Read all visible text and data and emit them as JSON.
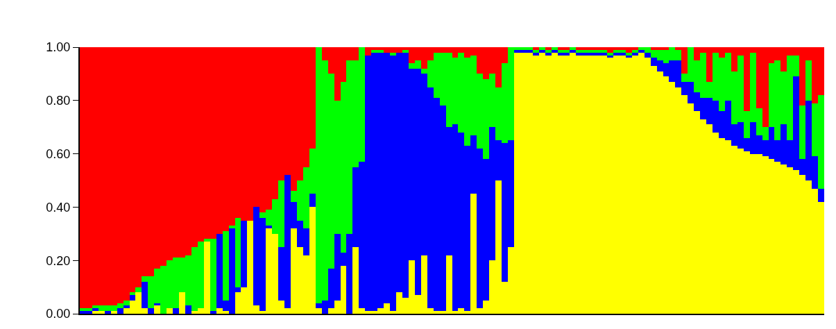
{
  "chart_data": {
    "type": "bar",
    "stacked": true,
    "categories": [
      null,
      null,
      null,
      null,
      null,
      null,
      null,
      null,
      null,
      null,
      null,
      null,
      null,
      null,
      null,
      null,
      null,
      null,
      null,
      null,
      null,
      null,
      null,
      null,
      null,
      null,
      null,
      null,
      null,
      null,
      null,
      null,
      null,
      null,
      null,
      null,
      null,
      null,
      null,
      null,
      null,
      null,
      null,
      null,
      null,
      null,
      null,
      null,
      null,
      null,
      null,
      null,
      null,
      null,
      null,
      null,
      null,
      null,
      null,
      null,
      null,
      null,
      null,
      null,
      null,
      null,
      null,
      null,
      null,
      null,
      null,
      null,
      null,
      null,
      null,
      null,
      null,
      null,
      null,
      null,
      null,
      null,
      null,
      null,
      null,
      null,
      null,
      null,
      null,
      null,
      null,
      null,
      null,
      null,
      null,
      null,
      null,
      null,
      null,
      null,
      null,
      null,
      null,
      null,
      null,
      null,
      null,
      null,
      null,
      null,
      null,
      null,
      null,
      null,
      null,
      null,
      null,
      null,
      null,
      null
    ],
    "series": [
      {
        "color": "#ffff00",
        "values": [
          0.0,
          0.0,
          0.01,
          0.01,
          0.0,
          0.01,
          0.0,
          0.02,
          0.05,
          0.08,
          0.02,
          0.0,
          0.03,
          0.0,
          0.02,
          0.0,
          0.08,
          0.0,
          0.01,
          0.02,
          0.27,
          0.0,
          0.02,
          0.01,
          0.0,
          0.08,
          0.1,
          0.35,
          0.03,
          0.01,
          0.32,
          0.3,
          0.05,
          0.02,
          0.32,
          0.25,
          0.22,
          0.4,
          0.02,
          0.0,
          0.02,
          0.05,
          0.18,
          0.0,
          0.25,
          0.02,
          0.01,
          0.01,
          0.02,
          0.04,
          0.01,
          0.08,
          0.06,
          0.2,
          0.07,
          0.22,
          0.02,
          0.01,
          0.01,
          0.22,
          0.01,
          0.02,
          0.01,
          0.45,
          0.02,
          0.05,
          0.2,
          0.5,
          0.12,
          0.25,
          0.98,
          0.98,
          0.98,
          0.97,
          0.98,
          0.97,
          0.98,
          0.97,
          0.97,
          0.98,
          0.97,
          0.97,
          0.97,
          0.97,
          0.97,
          0.96,
          0.97,
          0.97,
          0.96,
          0.97,
          0.98,
          0.96,
          0.93,
          0.91,
          0.89,
          0.87,
          0.85,
          0.82,
          0.79,
          0.76,
          0.73,
          0.71,
          0.68,
          0.66,
          0.65,
          0.63,
          0.62,
          0.61,
          0.6,
          0.6,
          0.59,
          0.58,
          0.57,
          0.56,
          0.55,
          0.54,
          0.52,
          0.5,
          0.47,
          0.42
        ]
      },
      {
        "color": "#0000ff",
        "values": [
          0.01,
          0.01,
          0.01,
          0.0,
          0.01,
          0.0,
          0.02,
          0.01,
          0.02,
          0.0,
          0.1,
          0.02,
          0.01,
          0.0,
          0.0,
          0.02,
          0.0,
          0.03,
          0.0,
          0.0,
          0.0,
          0.01,
          0.28,
          0.04,
          0.32,
          0.02,
          0.25,
          0.0,
          0.37,
          0.35,
          0.01,
          0.0,
          0.2,
          0.5,
          0.1,
          0.1,
          0.1,
          0.05,
          0.02,
          0.05,
          0.15,
          0.25,
          0.05,
          0.3,
          0.3,
          0.55,
          0.96,
          0.97,
          0.96,
          0.94,
          0.96,
          0.9,
          0.92,
          0.72,
          0.85,
          0.68,
          0.83,
          0.8,
          0.77,
          0.48,
          0.7,
          0.66,
          0.62,
          0.22,
          0.6,
          0.53,
          0.5,
          0.15,
          0.52,
          0.4,
          0.01,
          0.01,
          0.01,
          0.01,
          0.01,
          0.01,
          0.01,
          0.01,
          0.01,
          0.01,
          0.01,
          0.01,
          0.01,
          0.01,
          0.01,
          0.01,
          0.01,
          0.01,
          0.01,
          0.01,
          0.01,
          0.02,
          0.03,
          0.04,
          0.05,
          0.08,
          0.1,
          0.05,
          0.08,
          0.07,
          0.08,
          0.1,
          0.12,
          0.1,
          0.15,
          0.08,
          0.1,
          0.05,
          0.12,
          0.07,
          0.06,
          0.12,
          0.08,
          0.15,
          0.1,
          0.35,
          0.06,
          0.3,
          0.12,
          0.05
        ]
      },
      {
        "color": "#00ff00",
        "values": [
          0.01,
          0.01,
          0.01,
          0.02,
          0.02,
          0.02,
          0.02,
          0.02,
          0.01,
          0.02,
          0.02,
          0.12,
          0.13,
          0.18,
          0.18,
          0.19,
          0.13,
          0.19,
          0.24,
          0.25,
          0.01,
          0.27,
          0.0,
          0.26,
          0.01,
          0.26,
          0.0,
          0.0,
          0.0,
          0.02,
          0.06,
          0.13,
          0.25,
          0.0,
          0.04,
          0.15,
          0.23,
          0.17,
          0.96,
          0.9,
          0.73,
          0.5,
          0.64,
          0.65,
          0.4,
          0.43,
          0.0,
          0.01,
          0.01,
          0.0,
          0.01,
          0.0,
          0.01,
          0.02,
          0.03,
          0.02,
          0.1,
          0.17,
          0.2,
          0.28,
          0.25,
          0.3,
          0.33,
          0.3,
          0.28,
          0.3,
          0.2,
          0.2,
          0.3,
          0.35,
          0.01,
          0.01,
          0.01,
          0.01,
          0.01,
          0.01,
          0.01,
          0.01,
          0.01,
          0.01,
          0.01,
          0.01,
          0.01,
          0.01,
          0.01,
          0.01,
          0.01,
          0.01,
          0.01,
          0.01,
          0.01,
          0.02,
          0.03,
          0.04,
          0.05,
          0.05,
          0.04,
          0.03,
          0.13,
          0.12,
          0.17,
          0.06,
          0.18,
          0.2,
          0.18,
          0.2,
          0.25,
          0.1,
          0.26,
          0.1,
          0.05,
          0.24,
          0.3,
          0.2,
          0.32,
          0.08,
          0.2,
          0.15,
          0.2,
          0.35
        ]
      },
      {
        "color": "#ff0000",
        "values": [
          0.98,
          0.98,
          0.97,
          0.97,
          0.97,
          0.97,
          0.96,
          0.95,
          0.92,
          0.9,
          0.86,
          0.86,
          0.83,
          0.82,
          0.8,
          0.79,
          0.79,
          0.78,
          0.75,
          0.73,
          0.72,
          0.72,
          0.7,
          0.69,
          0.67,
          0.64,
          0.65,
          0.65,
          0.6,
          0.62,
          0.61,
          0.57,
          0.5,
          0.48,
          0.54,
          0.5,
          0.45,
          0.38,
          0.0,
          0.05,
          0.1,
          0.2,
          0.13,
          0.05,
          0.05,
          0.0,
          0.03,
          0.01,
          0.01,
          0.02,
          0.02,
          0.02,
          0.01,
          0.06,
          0.05,
          0.08,
          0.05,
          0.02,
          0.02,
          0.02,
          0.04,
          0.02,
          0.04,
          0.03,
          0.1,
          0.12,
          0.1,
          0.15,
          0.06,
          0.0,
          0.0,
          0.0,
          0.0,
          0.01,
          0.0,
          0.01,
          0.0,
          0.01,
          0.01,
          0.0,
          0.01,
          0.01,
          0.01,
          0.01,
          0.01,
          0.02,
          0.01,
          0.01,
          0.02,
          0.01,
          0.0,
          0.0,
          0.01,
          0.01,
          0.01,
          0.0,
          0.01,
          0.1,
          0.0,
          0.05,
          0.02,
          0.13,
          0.02,
          0.04,
          0.02,
          0.09,
          0.03,
          0.24,
          0.02,
          0.23,
          0.3,
          0.06,
          0.05,
          0.09,
          0.03,
          0.03,
          0.22,
          0.05,
          0.21,
          0.18
        ]
      }
    ],
    "ylim": [
      0,
      1
    ],
    "yticks": [
      {
        "value": 0,
        "label": "0.00"
      },
      {
        "value": 0.2,
        "label": "0.20"
      },
      {
        "value": 0.4,
        "label": "0.40"
      },
      {
        "value": 0.6,
        "label": "0.60"
      },
      {
        "value": 0.8,
        "label": "0.80"
      },
      {
        "value": 1,
        "label": "1.00"
      }
    ],
    "tick_labels": "y"
  }
}
